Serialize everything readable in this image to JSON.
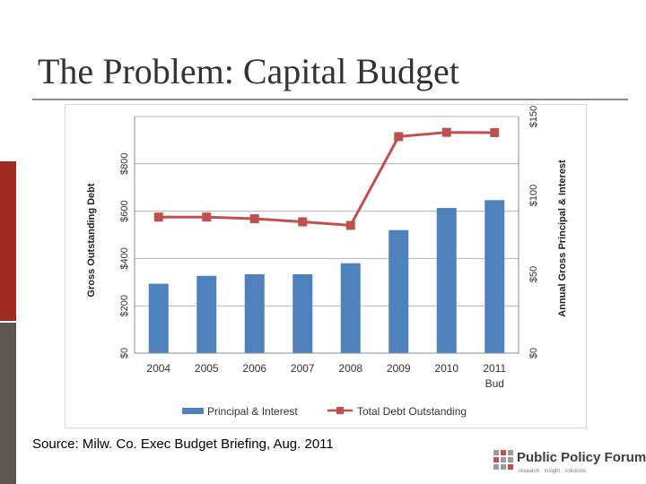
{
  "title": "The Problem: Capital Budget",
  "source": "Source: Milw. Co. Exec Budget Briefing, Aug. 2011",
  "logo": {
    "name": "Public Policy Forum",
    "tagline": "research · insight · solutions"
  },
  "colors": {
    "bar": "#4f81bd",
    "line": "#c0504d",
    "gridline": "#b3b3b3",
    "accent_red": "#9e2a20",
    "accent_gray": "#5e5653"
  },
  "chart_data": {
    "type": "bar-line-combo",
    "categories": [
      "2004",
      "2005",
      "2006",
      "2007",
      "2008",
      "2009",
      "2010",
      "2011"
    ],
    "category_sublabels": [
      "",
      "",
      "",
      "",
      "",
      "",
      "",
      "Bud"
    ],
    "series": [
      {
        "name": "Principal & Interest",
        "type": "bar",
        "axis": "right",
        "values": [
          44,
          49,
          50,
          50,
          57,
          78,
          92,
          97
        ]
      },
      {
        "name": "Total Debt Outstanding",
        "type": "line",
        "axis": "left",
        "values": [
          575,
          575,
          568,
          555,
          540,
          915,
          933,
          932
        ]
      }
    ],
    "y_left": {
      "label": "Gross Outstanding Debt",
      "ticks": [
        "$0",
        "$200",
        "$400",
        "$600",
        "$800"
      ],
      "range": [
        0,
        1000
      ]
    },
    "y_right": {
      "label": "Annual Gross Principal & Interest",
      "ticks": [
        "$0",
        "$50",
        "$100",
        "$150"
      ],
      "range": [
        0,
        150
      ]
    },
    "grid": true,
    "legend_position": "bottom"
  }
}
